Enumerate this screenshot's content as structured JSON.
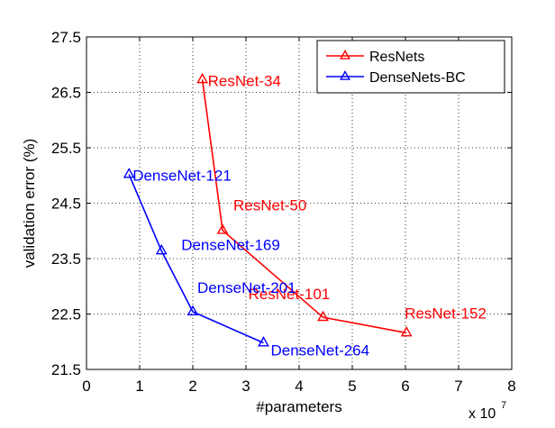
{
  "chart_data": {
    "type": "line",
    "xlabel": "#parameters",
    "ylabel": "validation error (%)",
    "x_multiplier": {
      "base": "x 10",
      "exponent": "7"
    },
    "xlim": [
      0,
      8
    ],
    "ylim": [
      21.5,
      27.5
    ],
    "xticks": [
      "0",
      "1",
      "2",
      "3",
      "4",
      "5",
      "6",
      "7",
      "8"
    ],
    "yticks": [
      "21.5",
      "22.5",
      "23.5",
      "24.5",
      "25.5",
      "26.5",
      "27.5"
    ],
    "grid": true,
    "legend_position": "top-right",
    "series": [
      {
        "name": "ResNets",
        "color": "#ff0000",
        "marker": "triangle",
        "points": [
          {
            "x": 2.18,
            "y": 26.73,
            "label": "ResNet-34"
          },
          {
            "x": 2.56,
            "y": 24.01,
            "label": "ResNet-50"
          },
          {
            "x": 4.45,
            "y": 22.44,
            "label": "ResNet-101"
          },
          {
            "x": 6.02,
            "y": 22.16,
            "label": "ResNet-152"
          }
        ]
      },
      {
        "name": "DenseNets-BC",
        "color": "#0000ff",
        "marker": "triangle",
        "points": [
          {
            "x": 0.8,
            "y": 25.02,
            "label": "DenseNet-121"
          },
          {
            "x": 1.41,
            "y": 23.64,
            "label": "DenseNet-169"
          },
          {
            "x": 2.0,
            "y": 22.54,
            "label": "DenseNet-201"
          },
          {
            "x": 3.33,
            "y": 21.98,
            "label": "DenseNet-264"
          }
        ]
      }
    ]
  }
}
